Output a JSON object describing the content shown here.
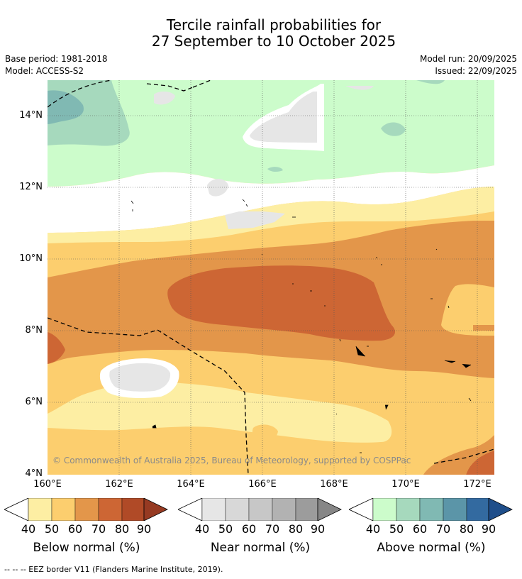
{
  "title": {
    "line1": "Tercile rainfall probabilities for",
    "line2": "27 September to 10 October 2025"
  },
  "meta": {
    "base_period": "Base period: 1981-2018",
    "model": "Model: ACCESS-S2",
    "model_run": "Model run: 20/09/2025",
    "issued": "Issued: 22/09/2025"
  },
  "map": {
    "lat_labels": [
      "14°N",
      "12°N",
      "10°N",
      "8°N",
      "6°N",
      "4°N"
    ],
    "lon_labels": [
      "160°E",
      "162°E",
      "164°E",
      "166°E",
      "168°E",
      "170°E",
      "172°E"
    ],
    "copyright": "© Commonwealth of Australia 2025, Bureau of Meteorology, supported by COSPPac"
  },
  "colorbars": [
    {
      "label": "Below normal (%)",
      "colors": [
        "#fdeea3",
        "#fcce6e",
        "#e3964a",
        "#cd6634",
        "#b04a27",
        "#963a22"
      ],
      "ticks": [
        "40",
        "50",
        "60",
        "70",
        "80",
        "90"
      ]
    },
    {
      "label": "Near normal (%)",
      "colors": [
        "#e6e6e6",
        "#d8d8d8",
        "#c7c7c7",
        "#b2b2b2",
        "#9c9c9c",
        "#868686"
      ],
      "ticks": [
        "40",
        "50",
        "60",
        "70",
        "80",
        "90"
      ]
    },
    {
      "label": "Above normal (%)",
      "colors": [
        "#ccfccb",
        "#a6d9bd",
        "#80b9b3",
        "#5b95a8",
        "#336aa0",
        "#1f4e8a"
      ],
      "ticks": [
        "40",
        "50",
        "60",
        "70",
        "80",
        "90"
      ]
    }
  ],
  "footnote": "--  --  -- EEZ border V11 (Flanders Marine Institute, 2019)."
}
